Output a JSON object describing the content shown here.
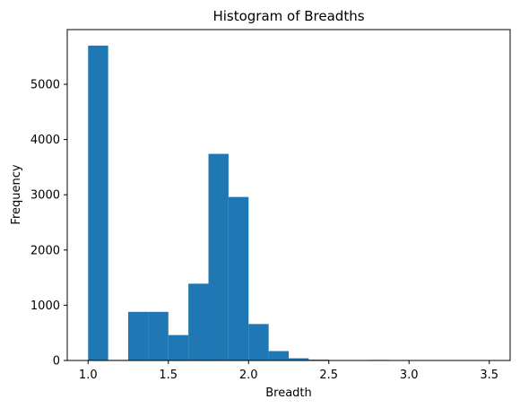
{
  "chart_data": {
    "type": "bar",
    "title": "Histogram of Breadths",
    "xlabel": "Breadth",
    "ylabel": "Frequency",
    "xlim": [
      0.87,
      3.63
    ],
    "ylim": [
      0,
      5990
    ],
    "xticks": [
      1.0,
      1.5,
      2.0,
      2.5,
      3.0,
      3.5
    ],
    "xtick_labels": [
      "1.0",
      "1.5",
      "2.0",
      "2.5",
      "3.0",
      "3.5"
    ],
    "yticks": [
      0,
      1000,
      2000,
      3000,
      4000,
      5000
    ],
    "ytick_labels": [
      "0",
      "1000",
      "2000",
      "3000",
      "4000",
      "5000"
    ],
    "bin_edges": [
      1.0,
      1.125,
      1.25,
      1.375,
      1.5,
      1.625,
      1.75,
      1.875,
      2.0,
      2.125,
      2.25,
      2.375,
      2.5,
      2.625,
      2.75,
      2.875,
      3.0,
      3.125,
      3.25,
      3.375,
      3.5
    ],
    "values": [
      5700,
      10,
      880,
      880,
      460,
      1390,
      3740,
      2960,
      660,
      170,
      40,
      15,
      8,
      3,
      10,
      2,
      1,
      1,
      0,
      1
    ],
    "color": "#1f77b4",
    "grid": false,
    "legend": "none"
  }
}
